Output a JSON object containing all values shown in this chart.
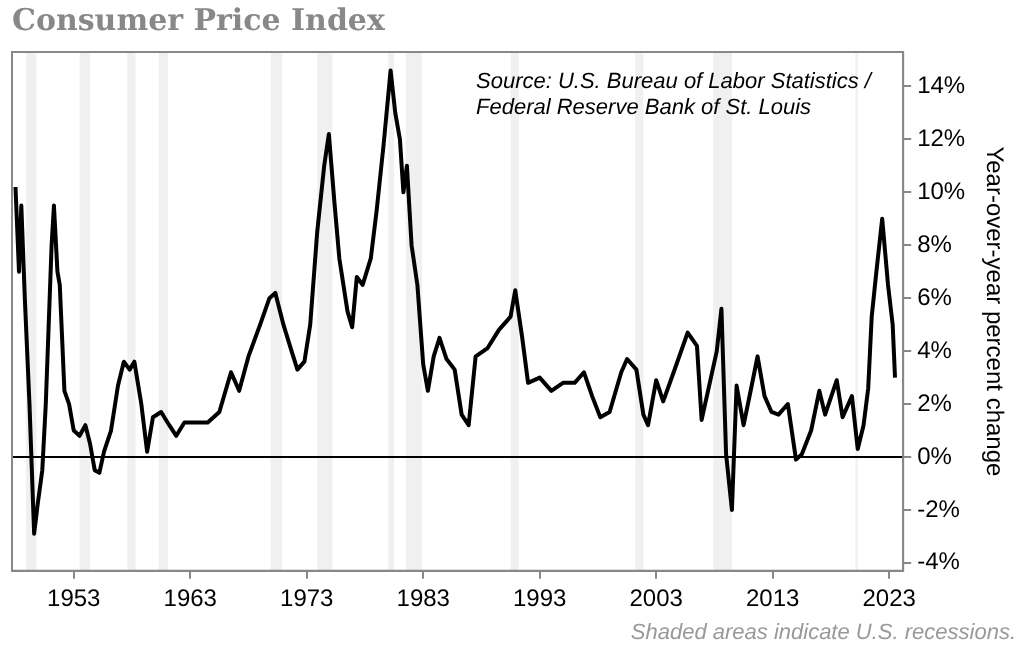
{
  "chart_data": {
    "type": "line",
    "title": "Consumer Price Index",
    "ylabel": "Year-over-year percent change",
    "annotations": [
      "Source: U.S. Bureau of Labor Statistics / Federal Reserve Bank of St. Louis",
      "Shaded areas indicate U.S. recessions."
    ],
    "x": [
      1948.0,
      1948.3,
      1948.5,
      1948.8,
      1949.2,
      1949.6,
      1949.9,
      1950.3,
      1950.6,
      1951.1,
      1951.3,
      1951.6,
      1951.8,
      1952.2,
      1952.6,
      1953.0,
      1953.5,
      1954.0,
      1954.4,
      1954.8,
      1955.2,
      1955.6,
      1956.2,
      1956.8,
      1957.3,
      1957.8,
      1958.2,
      1958.8,
      1959.3,
      1959.8,
      1960.5,
      1961.2,
      1961.8,
      1962.5,
      1963.5,
      1964.5,
      1965.5,
      1966.5,
      1967.2,
      1968.0,
      1969.0,
      1969.8,
      1970.3,
      1971.0,
      1971.7,
      1972.2,
      1972.8,
      1973.3,
      1973.9,
      1974.5,
      1974.9,
      1975.4,
      1975.8,
      1976.5,
      1976.9,
      1977.3,
      1977.8,
      1978.5,
      1979.0,
      1979.6,
      1980.2,
      1980.6,
      1981.0,
      1981.3,
      1981.6,
      1982.0,
      1982.5,
      1983.0,
      1983.4,
      1983.9,
      1984.4,
      1985.0,
      1985.7,
      1986.3,
      1986.9,
      1987.5,
      1988.5,
      1989.5,
      1990.5,
      1990.9,
      1991.5,
      1992.0,
      1993.0,
      1994.0,
      1995.0,
      1996.0,
      1996.8,
      1997.5,
      1998.2,
      1999.0,
      2000.0,
      2000.5,
      2001.3,
      2001.9,
      2002.3,
      2003.0,
      2003.6,
      2004.5,
      2005.7,
      2006.5,
      2006.9,
      2007.5,
      2008.2,
      2008.6,
      2009.0,
      2009.5,
      2009.9,
      2010.5,
      2011.2,
      2011.7,
      2012.3,
      2012.9,
      2013.5,
      2014.3,
      2015.0,
      2015.5,
      2016.3,
      2017.0,
      2017.5,
      2018.5,
      2019.0,
      2019.8,
      2020.3,
      2020.8,
      2021.2,
      2021.5,
      2021.9,
      2022.4,
      2022.9,
      2023.3,
      2023.5
    ],
    "series": [
      {
        "color": "#000000",
        "values": [
          10.2,
          7,
          9.5,
          6,
          2,
          -2.9,
          -1.8,
          -0.5,
          2,
          8,
          9.5,
          7,
          6.5,
          2.5,
          2,
          1,
          0.8,
          1.2,
          0.5,
          -0.5,
          -0.6,
          0.2,
          1,
          2.7,
          3.6,
          3.3,
          3.6,
          2,
          0.2,
          1.5,
          1.7,
          1.2,
          0.8,
          1.3,
          1.3,
          1.3,
          1.7,
          3.2,
          2.5,
          3.8,
          5,
          6,
          6.2,
          5,
          4,
          3.3,
          3.6,
          5,
          8.5,
          11,
          12.2,
          9.5,
          7.5,
          5.5,
          4.9,
          6.8,
          6.5,
          7.5,
          9.3,
          11.8,
          14.6,
          13,
          12,
          10,
          11,
          8,
          6.5,
          3.5,
          2.5,
          3.8,
          4.5,
          3.7,
          3.3,
          1.6,
          1.2,
          3.8,
          4.1,
          4.8,
          5.3,
          6.3,
          4.5,
          2.8,
          3.0,
          2.5,
          2.8,
          2.8,
          3.2,
          2.3,
          1.5,
          1.7,
          3.2,
          3.7,
          3.3,
          1.6,
          1.2,
          2.9,
          2.1,
          3.2,
          4.7,
          4.2,
          1.4,
          2.6,
          4.0,
          5.6,
          0.1,
          -2.0,
          2.7,
          1.2,
          2.7,
          3.8,
          2.3,
          1.7,
          1.6,
          2.0,
          -0.1,
          0.1,
          1.0,
          2.5,
          1.6,
          2.9,
          1.5,
          2.3,
          0.3,
          1.2,
          2.6,
          5.3,
          7.0,
          9.0,
          6.5,
          5.0,
          3.0
        ]
      }
    ],
    "xlim": [
      1947.7,
      2024.2
    ],
    "xticks": [
      1953,
      1963,
      1973,
      1983,
      1993,
      2003,
      2013,
      2023
    ],
    "ylim": [
      -4.3,
      15.3
    ],
    "yticks": [
      {
        "value": -4,
        "label": "-4%"
      },
      {
        "value": -2,
        "label": "-2%"
      },
      {
        "value": 0,
        "label": "0%"
      },
      {
        "value": 2,
        "label": "2%"
      },
      {
        "value": 4,
        "label": "4%"
      },
      {
        "value": 6,
        "label": "6%"
      },
      {
        "value": 8,
        "label": "8%"
      },
      {
        "value": 10,
        "label": "10%"
      },
      {
        "value": 12,
        "label": "12%"
      },
      {
        "value": 14,
        "label": "14%"
      }
    ],
    "ref_lines": [
      {
        "axis": "y",
        "value": 0,
        "color": "#000000"
      }
    ],
    "bands": [
      {
        "axis": "x",
        "from": 1948.9,
        "to": 1949.8,
        "color": "#f0f0f0"
      },
      {
        "axis": "x",
        "from": 1953.5,
        "to": 1954.4,
        "color": "#f0f0f0"
      },
      {
        "axis": "x",
        "from": 1957.6,
        "to": 1958.3,
        "color": "#f0f0f0"
      },
      {
        "axis": "x",
        "from": 1960.3,
        "to": 1961.1,
        "color": "#f0f0f0"
      },
      {
        "axis": "x",
        "from": 1969.9,
        "to": 1970.9,
        "color": "#f0f0f0"
      },
      {
        "axis": "x",
        "from": 1973.9,
        "to": 1975.2,
        "color": "#f0f0f0"
      },
      {
        "axis": "x",
        "from": 1980.0,
        "to": 1980.5,
        "color": "#f0f0f0"
      },
      {
        "axis": "x",
        "from": 1981.5,
        "to": 1982.9,
        "color": "#f0f0f0"
      },
      {
        "axis": "x",
        "from": 1990.5,
        "to": 1991.2,
        "color": "#f0f0f0"
      },
      {
        "axis": "x",
        "from": 2001.2,
        "to": 2001.9,
        "color": "#f0f0f0"
      },
      {
        "axis": "x",
        "from": 2007.9,
        "to": 2009.5,
        "color": "#f0f0f0"
      },
      {
        "axis": "x",
        "from": 2020.1,
        "to": 2020.3,
        "color": "#f0f0f0"
      }
    ],
    "grid": false,
    "legend": false,
    "marker": "none",
    "line_style": "solid"
  }
}
